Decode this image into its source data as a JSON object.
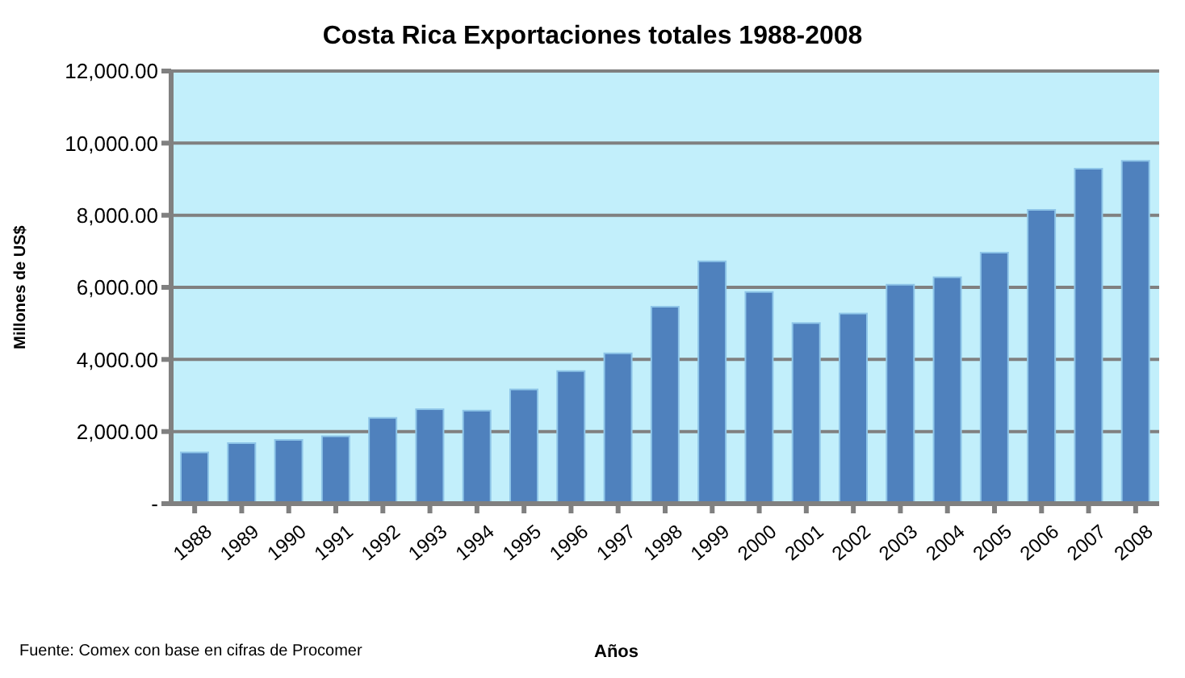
{
  "chart_data": {
    "type": "bar",
    "title": "Costa Rica Exportaciones totales 1988-2008",
    "xlabel": "Años",
    "ylabel": "Millones de US$",
    "categories": [
      "1988",
      "1989",
      "1990",
      "1991",
      "1992",
      "1993",
      "1994",
      "1995",
      "1996",
      "1997",
      "1998",
      "1999",
      "2000",
      "2001",
      "2002",
      "2003",
      "2004",
      "2005",
      "2006",
      "2007",
      "2008"
    ],
    "values": [
      1420,
      1680,
      1770,
      1870,
      2380,
      2620,
      2580,
      3170,
      3680,
      4170,
      5460,
      6720,
      5870,
      5010,
      5270,
      6070,
      6280,
      6960,
      8150,
      9290,
      9510
    ],
    "color": "#4f81bd",
    "ylim": [
      0,
      12000
    ],
    "yticks": [
      {
        "value": 0,
        "label": "-"
      },
      {
        "value": 2000,
        "label": "2,000.00"
      },
      {
        "value": 4000,
        "label": "4,000.00"
      },
      {
        "value": 6000,
        "label": "6,000.00"
      },
      {
        "value": 8000,
        "label": "8,000.00"
      },
      {
        "value": 10000,
        "label": "10,000.00"
      },
      {
        "value": 12000,
        "label": "12,000.00"
      }
    ],
    "grid": "y",
    "legend": false,
    "annotations": [
      "Fuente: Comex con base en cifras de Procomer"
    ]
  }
}
